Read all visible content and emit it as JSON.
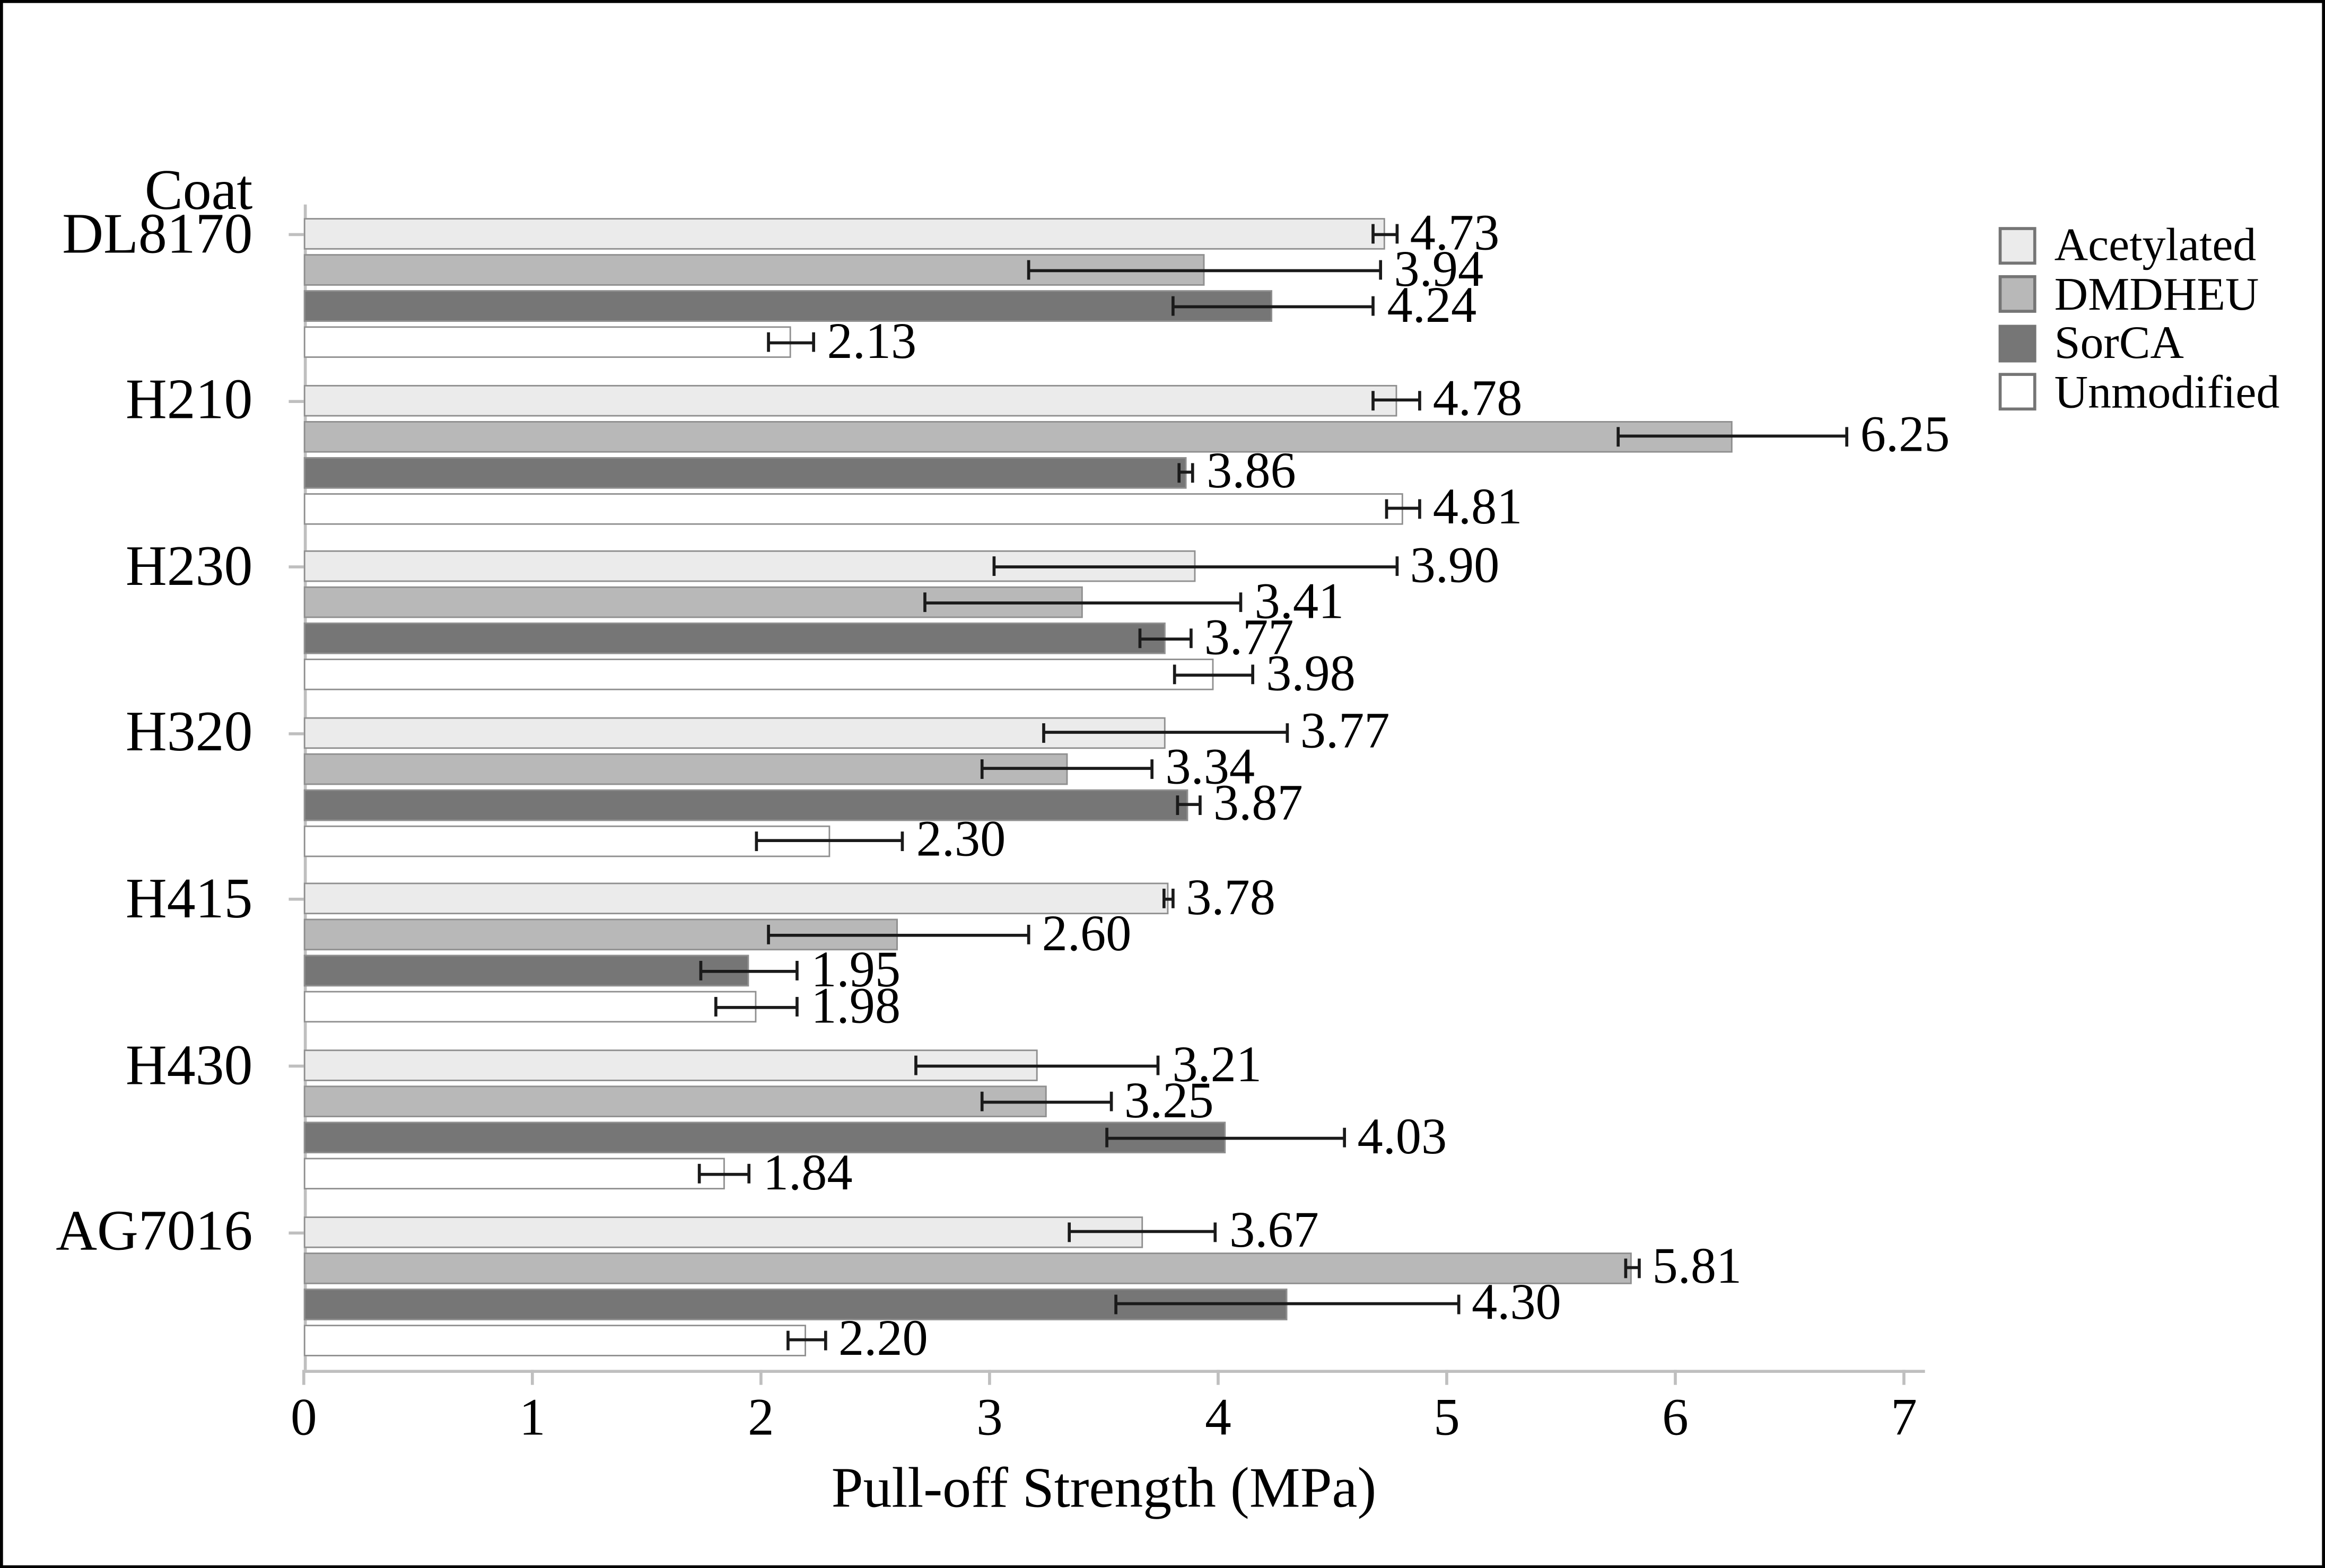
{
  "figure": {
    "title": "Coat",
    "background": "#ffffff",
    "border_color": "#000000"
  },
  "x_axis": {
    "title": "Pull-off Strength (MPa)",
    "tick_labels": [
      "0",
      "1",
      "2",
      "3",
      "4",
      "5",
      "6",
      "7"
    ],
    "axis_color": "#bfbfbf"
  },
  "legend": {
    "position": "right-top",
    "items": [
      {
        "label": "Acetylated",
        "color": "#ebebeb"
      },
      {
        "label": "DMDHEU",
        "color": "#b8b8b8"
      },
      {
        "label": "SorCA",
        "color": "#767676"
      },
      {
        "label": "Unmodified",
        "color": "#ffffff"
      }
    ]
  },
  "chart_data": {
    "type": "bar",
    "orientation": "horizontal",
    "title": "Coat",
    "xlabel": "Pull-off Strength (MPa)",
    "ylabel": "Coat",
    "xlim": [
      0,
      7
    ],
    "grid": false,
    "error_bars": true,
    "data_labels": "outside-end, 2 decimals",
    "categories": [
      "DL8170",
      "H210",
      "H230",
      "H320",
      "H415",
      "H430",
      "AG7016"
    ],
    "series": [
      {
        "name": "Acetylated",
        "color": "#ebebeb",
        "values": [
          4.73,
          4.78,
          3.9,
          3.77,
          3.78,
          3.21,
          3.67
        ],
        "errors": [
          0.05,
          0.1,
          0.88,
          0.53,
          0.02,
          0.53,
          0.32
        ]
      },
      {
        "name": "DMDHEU",
        "color": "#b8b8b8",
        "values": [
          3.94,
          6.25,
          3.41,
          3.34,
          2.6,
          3.25,
          5.81
        ],
        "errors": [
          0.77,
          0.5,
          0.69,
          0.37,
          0.57,
          0.28,
          0.03
        ]
      },
      {
        "name": "SorCA",
        "color": "#767676",
        "values": [
          4.24,
          3.86,
          3.77,
          3.87,
          1.95,
          4.03,
          4.3
        ],
        "errors": [
          0.44,
          0.03,
          0.11,
          0.05,
          0.21,
          0.52,
          0.75
        ]
      },
      {
        "name": "Unmodified",
        "color": "#ffffff",
        "values": [
          2.13,
          4.81,
          3.98,
          2.3,
          1.98,
          1.84,
          2.2
        ],
        "errors": [
          0.1,
          0.07,
          0.17,
          0.32,
          0.18,
          0.11,
          0.08
        ]
      }
    ]
  }
}
